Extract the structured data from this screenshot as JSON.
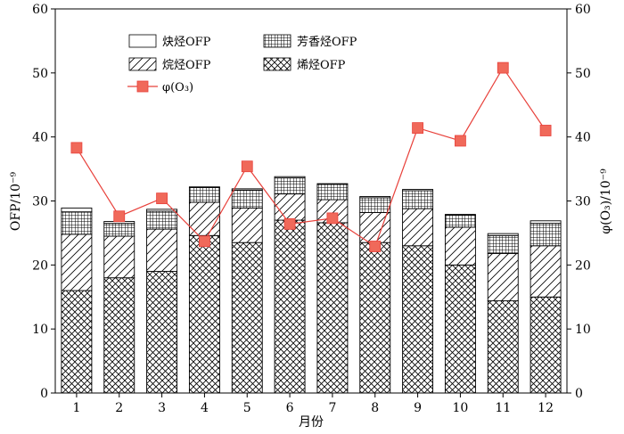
{
  "chart_data": {
    "type": "bar",
    "stacked": true,
    "categories": [
      "1",
      "2",
      "3",
      "4",
      "5",
      "6",
      "7",
      "8",
      "9",
      "10",
      "11",
      "12"
    ],
    "xlabel": "月份",
    "ylabel": "OFP/10⁻⁹",
    "y2label": "φ(O₃)/10⁻⁹",
    "ylim": [
      0,
      60
    ],
    "y2lim": [
      0,
      60
    ],
    "yticks": [
      0,
      10,
      20,
      30,
      40,
      50,
      60
    ],
    "grid": false,
    "legend_position": "top-left",
    "series": [
      {
        "name": "烯烃OFP",
        "pattern": "crosshatch",
        "values": [
          16.0,
          18.0,
          19.0,
          24.6,
          23.5,
          27.0,
          26.6,
          23.5,
          23.0,
          20.0,
          14.4,
          15.0
        ]
      },
      {
        "name": "烷烃OFP",
        "pattern": "diagonal",
        "values": [
          8.8,
          6.5,
          6.6,
          5.2,
          5.4,
          4.1,
          3.6,
          4.7,
          5.8,
          5.9,
          7.4,
          8.0
        ]
      },
      {
        "name": "芳香烃OFP",
        "pattern": "grid",
        "values": [
          3.5,
          2.0,
          2.8,
          2.3,
          2.8,
          2.5,
          2.4,
          2.3,
          2.8,
          1.9,
          2.8,
          3.5
        ]
      },
      {
        "name": "炔烃OFP",
        "pattern": "solid-white",
        "values": [
          0.6,
          0.3,
          0.3,
          0.1,
          0.2,
          0.2,
          0.1,
          0.2,
          0.2,
          0.1,
          0.3,
          0.4
        ]
      }
    ],
    "line": {
      "name": "φ(O₃)",
      "axis": "right",
      "color": "#e8403a",
      "marker_color": "#f0695a",
      "values": [
        38.3,
        27.6,
        30.4,
        23.7,
        35.4,
        26.4,
        27.3,
        22.9,
        41.4,
        39.4,
        50.8,
        41.0
      ]
    }
  }
}
